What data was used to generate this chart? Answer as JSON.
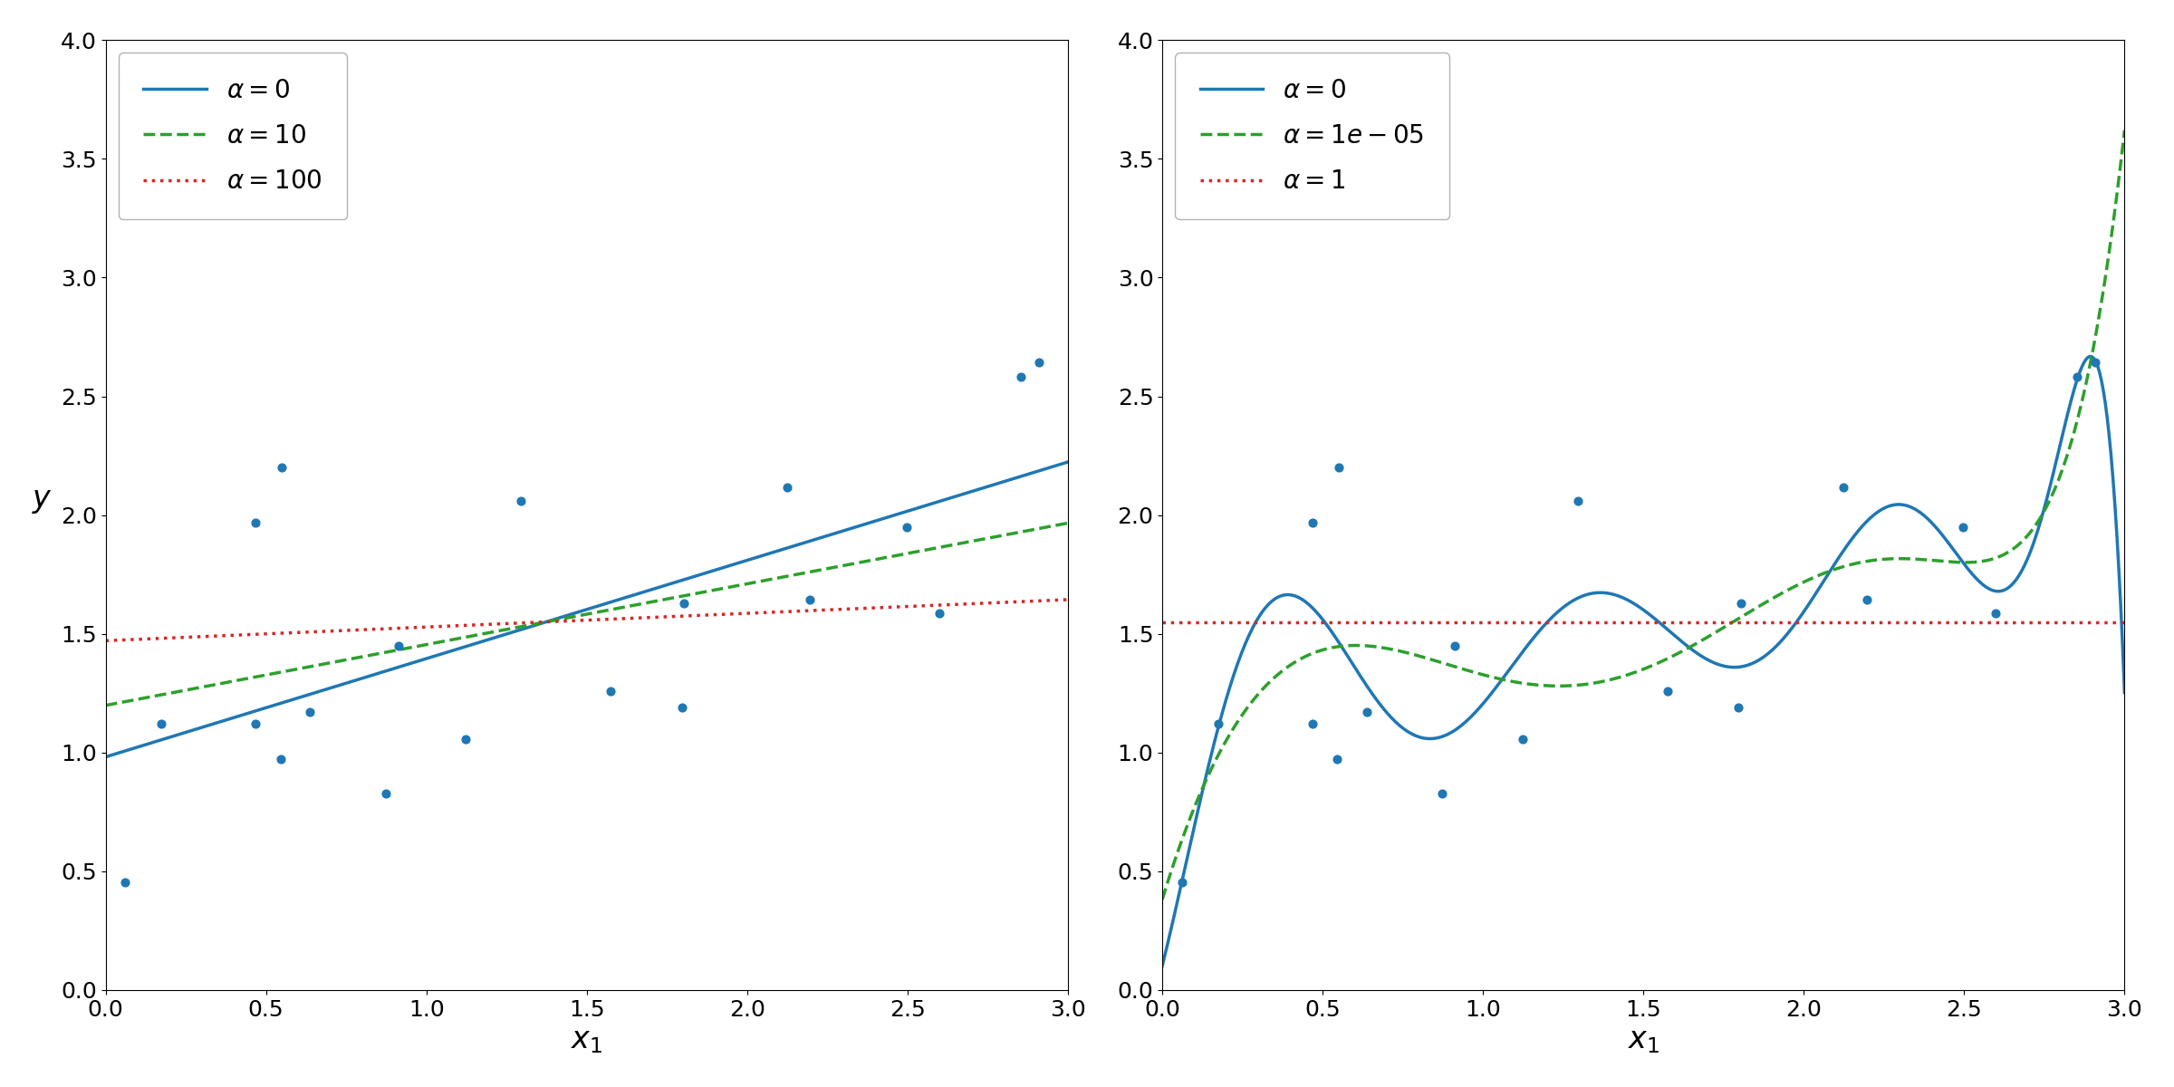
{
  "seed": 42,
  "n_samples": 20,
  "x_range": [
    0,
    3
  ],
  "y_range": [
    0,
    4
  ],
  "xlabel": "$x_1$",
  "ylabel": "$y$",
  "left_legend": [
    {
      "label": "$\\alpha = 0$",
      "color": "#1f77b4",
      "ls": "-"
    },
    {
      "label": "$\\alpha = 10$",
      "color": "#2ca02c",
      "ls": "--"
    },
    {
      "label": "$\\alpha = 100$",
      "color": "#d62728",
      "ls": ":"
    }
  ],
  "right_legend": [
    {
      "label": "$\\alpha = 0$",
      "color": "#1f77b4",
      "ls": "-"
    },
    {
      "label": "$\\alpha = 1e - 05$",
      "color": "#2ca02c",
      "ls": "--"
    },
    {
      "label": "$\\alpha = 1$",
      "color": "#d62728",
      "ls": ":"
    }
  ],
  "dot_color": "#1f77b4",
  "dot_size": 40,
  "line_width": 2.5,
  "legend_fontsize": 20,
  "tick_fontsize": 18,
  "label_fontsize": 24,
  "fig_width": 24.0,
  "fig_height": 12.0
}
